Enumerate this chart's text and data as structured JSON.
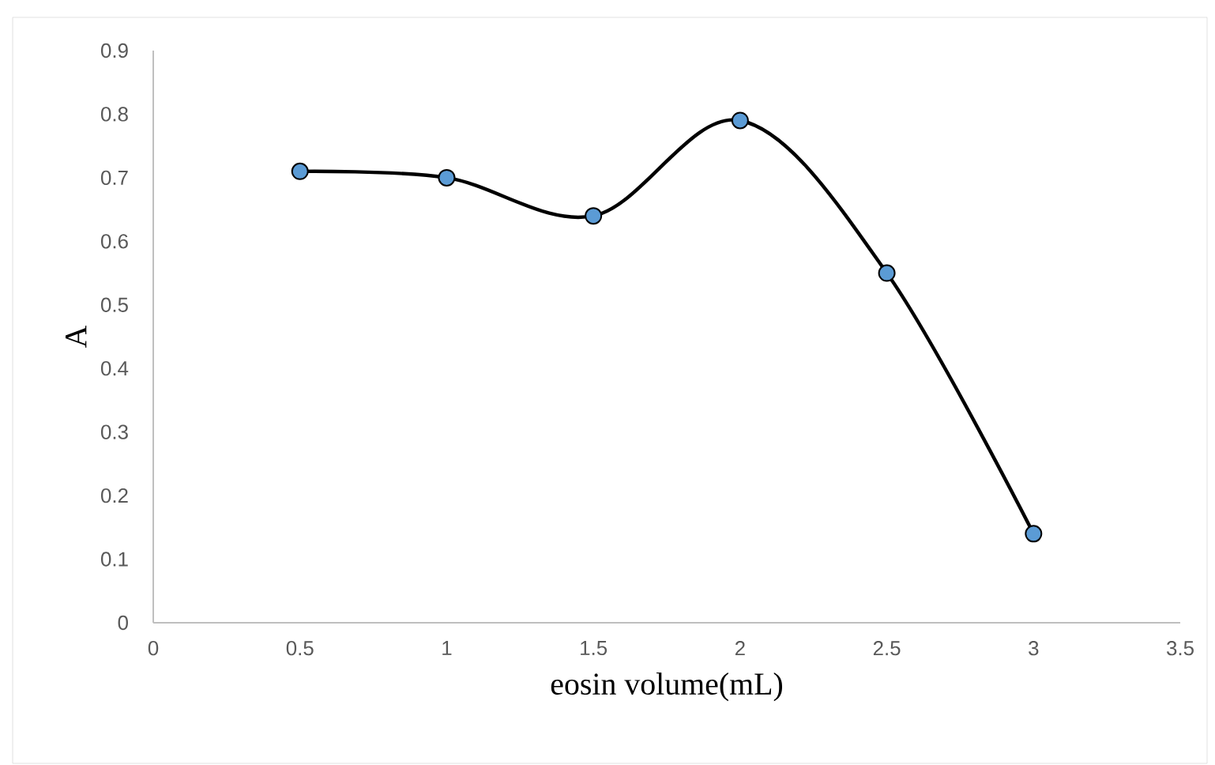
{
  "chart_data": {
    "type": "line",
    "xlabel": "eosin volume(mL)",
    "ylabel": "A",
    "x": [
      0.5,
      1,
      1.5,
      2,
      2.5,
      3
    ],
    "series": [
      {
        "color": "#000000",
        "values": [
          0.71,
          0.7,
          0.64,
          0.79,
          0.55,
          0.14
        ]
      }
    ],
    "xlim": [
      0,
      3.5
    ],
    "ylim": [
      0,
      0.9
    ],
    "xticks": [
      0,
      0.5,
      1,
      1.5,
      2,
      2.5,
      3,
      3.5
    ],
    "yticks": [
      0,
      0.1,
      0.2,
      0.3,
      0.4,
      0.5,
      0.6,
      0.7,
      0.8,
      0.9
    ],
    "marker": "circle",
    "line_style": "solid",
    "grid": false
  }
}
